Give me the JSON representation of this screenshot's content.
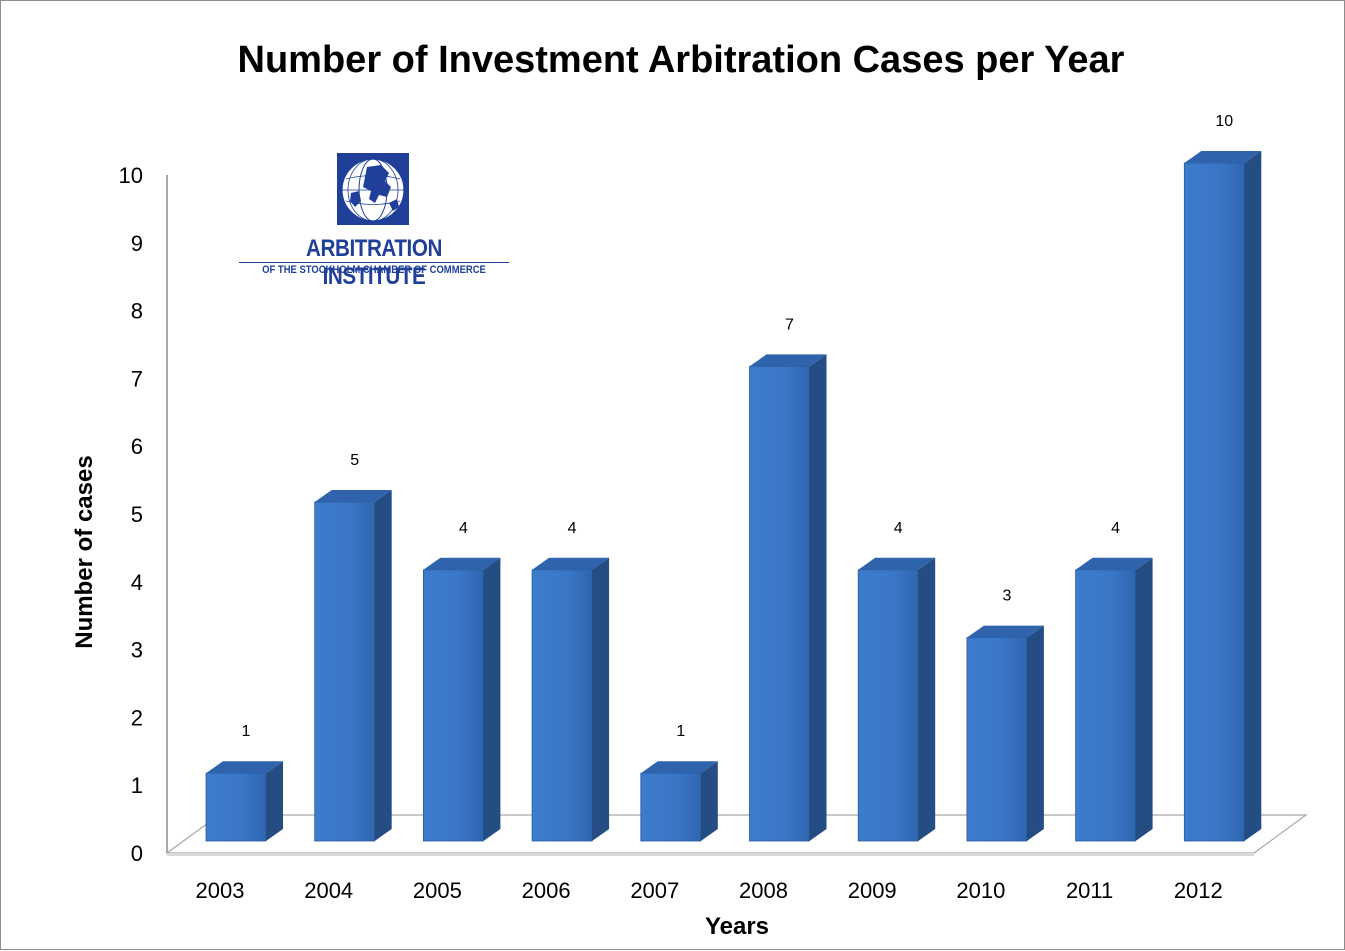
{
  "chart_data": {
    "type": "bar",
    "title": "Number of Investment Arbitration Cases per Year",
    "xlabel": "Years",
    "ylabel": "Number of cases",
    "categories": [
      "2003",
      "2004",
      "2005",
      "2006",
      "2007",
      "2008",
      "2009",
      "2010",
      "2011",
      "2012"
    ],
    "values": [
      1,
      5,
      4,
      4,
      1,
      7,
      4,
      3,
      4,
      10
    ],
    "data_labels": [
      "1",
      "5",
      "4",
      "4",
      "1",
      "7",
      "4",
      "3",
      "4",
      "10"
    ],
    "ylim": [
      0,
      10
    ],
    "yticks": [
      "0",
      "1",
      "2",
      "3",
      "4",
      "5",
      "6",
      "7",
      "8",
      "9",
      "10"
    ],
    "grid": false,
    "legend": "none",
    "bar_colors": {
      "front": "#3a76c6",
      "side": "#244d83",
      "top": "#2f64ad"
    }
  },
  "logo": {
    "name": "ARBITRATION INSTITUTE",
    "subtitle": "OF THE STOCKHOLM CHAMBER OF COMMERCE",
    "color": "#1f3f99"
  }
}
